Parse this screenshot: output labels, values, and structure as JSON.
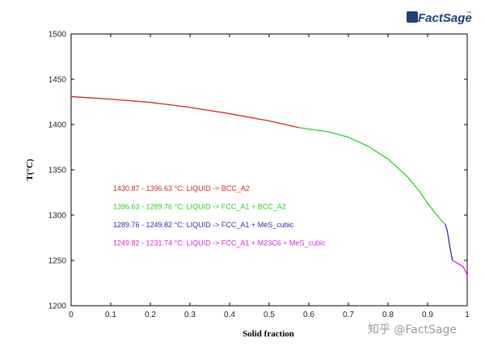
{
  "logo": {
    "text": "FactSage",
    "mark": "™"
  },
  "watermark": "知乎 @FactSage",
  "chart_data": {
    "type": "line",
    "xlabel": "Solid fraction",
    "ylabel": "T(°C)",
    "xlim": [
      0,
      1
    ],
    "ylim": [
      1200,
      1500
    ],
    "xticks": [
      "0",
      "0.1",
      "0.2",
      "0.3",
      "0.4",
      "0.5",
      "0.6",
      "0.7",
      "0.8",
      "0.9",
      "1"
    ],
    "yticks": [
      "1200",
      "1250",
      "1300",
      "1350",
      "1400",
      "1450",
      "1500"
    ],
    "grid": false,
    "legend_position": "left-center",
    "series": [
      {
        "name": "1430.87 - 1396.63 °C: LIQUID -> BCC_A2",
        "color": "#cc2a2a",
        "x": [
          0,
          0.1,
          0.2,
          0.3,
          0.4,
          0.5,
          0.575
        ],
        "y": [
          1430.87,
          1428.0,
          1424.5,
          1419.0,
          1412.0,
          1404.0,
          1396.63
        ]
      },
      {
        "name": "1396.63 - 1289.76 °C: LIQUID -> FCC_A1 + BCC_A2",
        "color": "#2ecc2e",
        "x": [
          0.575,
          0.65,
          0.7,
          0.75,
          0.8,
          0.85,
          0.88,
          0.9,
          0.92,
          0.935,
          0.945
        ],
        "y": [
          1396.63,
          1392.0,
          1386.0,
          1376.0,
          1362.0,
          1342.0,
          1326.0,
          1313.0,
          1302.0,
          1294.0,
          1289.76
        ]
      },
      {
        "name": "1289.76 - 1249.82 °C: LIQUID -> FCC_A1 + MeS_cubic",
        "color": "#2a2ab8",
        "x": [
          0.945,
          0.95,
          0.955,
          0.96,
          0.963
        ],
        "y": [
          1289.76,
          1282.0,
          1268.0,
          1256.0,
          1249.82
        ]
      },
      {
        "name": "1249.82 - 1231.74 °C: LIQUID -> FCC_A1 + M23C6 + MeS_cubic",
        "color": "#d22ad2",
        "x": [
          0.963,
          0.975,
          0.99,
          0.998,
          1.0
        ],
        "y": [
          1249.82,
          1247.0,
          1243.0,
          1236.0,
          1231.74
        ]
      }
    ]
  }
}
